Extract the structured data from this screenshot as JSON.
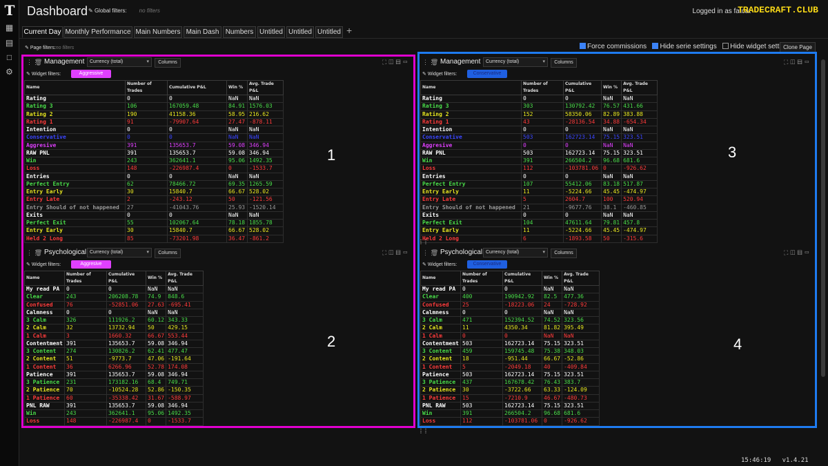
{
  "app": {
    "title": "Dashboard",
    "global_filters_label": "Global filters:",
    "global_filters_value": "no filters",
    "login_text": "Logged in as fatcat",
    "brand": "TRADECRAFT.CLUB",
    "logo_glyph": "T"
  },
  "tabs": [
    "Current Day",
    "Monthly Performance",
    "Main Numbers",
    "Main Dash",
    "Numbers",
    "Untitled",
    "Untitled",
    "Untitled"
  ],
  "add_tab": "+",
  "page_filters": {
    "label": "Page filters:",
    "value": "no filters"
  },
  "controls": {
    "force_commissions": "Force commissions",
    "hide_serie_settings": "Hide serie settings",
    "hide_widget_settings": "Hide widget settings",
    "clone_page": "Clone Page"
  },
  "columns": [
    "Name",
    "Number of Trades",
    "Cumulative P&L",
    "Win %",
    "Avg. Trade P&L"
  ],
  "colors": {
    "white": "#ffffff",
    "green": "#4ade4a",
    "yellow": "#e8e820",
    "red": "#ff3b3b",
    "blue": "#3b46ff",
    "magenta": "#e040ff",
    "gray": "#9a9a9a",
    "outline_left": "#e000d0",
    "outline_right": "#1e7bf0"
  },
  "panels": [
    {
      "id": "1",
      "title": "Management",
      "currency": "Currency (total)",
      "columns_btn": "Columns",
      "widget_filters": "Widget filters:",
      "filter": "Aggressive",
      "rows": [
        [
          "Rating",
          "0",
          "0",
          "NaN",
          "NaN",
          "white"
        ],
        [
          "Rating 3",
          "106",
          "167059.48",
          "84.91",
          "1576.03",
          "green"
        ],
        [
          "Rating 2",
          "190",
          "41158.36",
          "58.95",
          "216.62",
          "yellow"
        ],
        [
          "Rating 1",
          "91",
          "-79907.64",
          "27.47",
          "-878.11",
          "red"
        ],
        [
          "Intention",
          "0",
          "0",
          "NaN",
          "NaN",
          "white"
        ],
        [
          "Conservative",
          "0",
          "0",
          "NaN",
          "NaN",
          "blue"
        ],
        [
          "Aggresive",
          "391",
          "135653.7",
          "59.08",
          "346.94",
          "magenta"
        ],
        [
          "RAW PNL",
          "391",
          "135653.7",
          "59.08",
          "346.94",
          "white"
        ],
        [
          "Win",
          "243",
          "362641.1",
          "95.06",
          "1492.35",
          "green"
        ],
        [
          "Loss",
          "148",
          "-226987.4",
          "0",
          "-1533.7",
          "red"
        ],
        [
          "Entries",
          "0",
          "0",
          "NaN",
          "NaN",
          "white"
        ],
        [
          "Perfect Entry",
          "62",
          "78466.72",
          "69.35",
          "1265.59",
          "green"
        ],
        [
          "Entry Early",
          "30",
          "15840.7",
          "66.67",
          "528.02",
          "yellow"
        ],
        [
          "Entry Late",
          "2",
          "-243.12",
          "50",
          "-121.56",
          "red"
        ],
        [
          "Entry Should of not happened",
          "27",
          "-41043.76",
          "25.93",
          "-1520.14",
          "gray"
        ],
        [
          "Exits",
          "0",
          "0",
          "NaN",
          "NaN",
          "white"
        ],
        [
          "Perfect Exit",
          "55",
          "102067.64",
          "78.18",
          "1855.78",
          "green"
        ],
        [
          "Entry Early",
          "30",
          "15840.7",
          "66.67",
          "528.02",
          "yellow"
        ],
        [
          "Held 2 Long",
          "85",
          "-73201.98",
          "36.47",
          "-861.2",
          "red"
        ]
      ]
    },
    {
      "id": "2",
      "title": "Psychological",
      "currency": "Currency (total)",
      "columns_btn": "Columns",
      "widget_filters": "Widget filters:",
      "filter": "Aggresive",
      "rows": [
        [
          "My read PA",
          "0",
          "0",
          "NaN",
          "NaN",
          "white"
        ],
        [
          "Clear",
          "243",
          "206208.78",
          "74.9",
          "848.6",
          "green"
        ],
        [
          "Confused",
          "76",
          "-52851.06",
          "27.63",
          "-695.41",
          "red"
        ],
        [
          "Calmness",
          "0",
          "0",
          "NaN",
          "NaN",
          "white"
        ],
        [
          "3 Calm",
          "326",
          "111926.2",
          "60.12",
          "343.33",
          "green"
        ],
        [
          "2 Calm",
          "32",
          "13732.94",
          "50",
          "429.15",
          "yellow"
        ],
        [
          "1 Calm",
          "3",
          "1660.32",
          "66.67",
          "553.44",
          "red"
        ],
        [
          "Contentment",
          "391",
          "135653.7",
          "59.08",
          "346.94",
          "white"
        ],
        [
          "3 Content",
          "274",
          "130826.2",
          "62.41",
          "477.47",
          "green"
        ],
        [
          "2 Content",
          "51",
          "-9773.7",
          "47.06",
          "-191.64",
          "yellow"
        ],
        [
          "1 Content",
          "36",
          "6266.96",
          "52.78",
          "174.08",
          "red"
        ],
        [
          "Patience",
          "391",
          "135653.7",
          "59.08",
          "346.94",
          "white"
        ],
        [
          "3 Patience",
          "231",
          "173182.16",
          "68.4",
          "749.71",
          "green"
        ],
        [
          "2 Patience",
          "70",
          "-10524.28",
          "52.86",
          "-150.35",
          "yellow"
        ],
        [
          "1 Patience",
          "60",
          "-35338.42",
          "31.67",
          "-588.97",
          "red"
        ],
        [
          "PNL RAW",
          "391",
          "135653.7",
          "59.08",
          "346.94",
          "white"
        ],
        [
          "Win",
          "243",
          "362641.1",
          "95.06",
          "1492.35",
          "green"
        ],
        [
          "Loss",
          "148",
          "-226987.4",
          "0",
          "-1533.7",
          "red"
        ]
      ]
    },
    {
      "id": "3",
      "title": "Management",
      "currency": "Currency (total)",
      "columns_btn": "Columns",
      "widget_filters": "Widget filters:",
      "filter": "Conservative",
      "rows": [
        [
          "Rating",
          "0",
          "0",
          "NaN",
          "NaN",
          "white"
        ],
        [
          "Rating 3",
          "303",
          "130792.42",
          "76.57",
          "431.66",
          "green"
        ],
        [
          "Rating 2",
          "152",
          "58350.06",
          "82.89",
          "383.88",
          "yellow"
        ],
        [
          "Rating 1",
          "43",
          "-28136.54",
          "34.88",
          "-654.34",
          "red"
        ],
        [
          "Intention",
          "0",
          "0",
          "NaN",
          "NaN",
          "white"
        ],
        [
          "Conservative",
          "503",
          "162723.14",
          "75.15",
          "323.51",
          "blue"
        ],
        [
          "Aggresive",
          "0",
          "0",
          "NaN",
          "NaN",
          "magenta"
        ],
        [
          "RAW PNL",
          "503",
          "162723.14",
          "75.15",
          "323.51",
          "white"
        ],
        [
          "Win",
          "391",
          "266504.2",
          "96.68",
          "681.6",
          "green"
        ],
        [
          "Loss",
          "112",
          "-103781.06",
          "0",
          "-926.62",
          "red"
        ],
        [
          "Entries",
          "0",
          "0",
          "NaN",
          "NaN",
          "white"
        ],
        [
          "Perfect Entry",
          "107",
          "55412.06",
          "83.18",
          "517.87",
          "green"
        ],
        [
          "Entry Early",
          "11",
          "-5224.66",
          "45.45",
          "-474.97",
          "yellow"
        ],
        [
          "Entry Late",
          "5",
          "2604.7",
          "100",
          "520.94",
          "red"
        ],
        [
          "Entry Should of not happened",
          "21",
          "-9677.76",
          "38.1",
          "-460.85",
          "gray"
        ],
        [
          "Exits",
          "0",
          "0",
          "NaN",
          "NaN",
          "white"
        ],
        [
          "Perfect Exit",
          "104",
          "47611.64",
          "79.81",
          "457.8",
          "green"
        ],
        [
          "Entry Early",
          "11",
          "-5224.66",
          "45.45",
          "-474.97",
          "yellow"
        ],
        [
          "Held 2 Long",
          "6",
          "-1893.58",
          "50",
          "-315.6",
          "red"
        ]
      ]
    },
    {
      "id": "4",
      "title": "Psychological",
      "currency": "Currency (total)",
      "columns_btn": "Columns",
      "widget_filters": "Widget filters:",
      "filter": "Conservative",
      "rows": [
        [
          "My read PA",
          "0",
          "0",
          "NaN",
          "NaN",
          "white"
        ],
        [
          "Clear",
          "400",
          "190942.92",
          "82.5",
          "477.36",
          "green"
        ],
        [
          "Confused",
          "25",
          "-18223.06",
          "24",
          "-728.92",
          "red"
        ],
        [
          "Calmness",
          "0",
          "0",
          "NaN",
          "NaN",
          "white"
        ],
        [
          "3 Calm",
          "471",
          "152394.52",
          "74.52",
          "323.56",
          "green"
        ],
        [
          "2 Calm",
          "11",
          "4350.34",
          "81.82",
          "395.49",
          "yellow"
        ],
        [
          "1 Calm",
          "0",
          "0",
          "NaN",
          "NaN",
          "red"
        ],
        [
          "Contentment",
          "503",
          "162723.14",
          "75.15",
          "323.51",
          "white"
        ],
        [
          "3 Content",
          "459",
          "159745.48",
          "75.38",
          "348.03",
          "green"
        ],
        [
          "2 Content",
          "18",
          "-951.44",
          "66.67",
          "-52.86",
          "yellow"
        ],
        [
          "1 Content",
          "5",
          "-2049.18",
          "40",
          "-409.84",
          "red"
        ],
        [
          "Patience",
          "503",
          "162723.14",
          "75.15",
          "323.51",
          "white"
        ],
        [
          "3 Patience",
          "437",
          "167678.42",
          "76.43",
          "383.7",
          "green"
        ],
        [
          "2 Patience",
          "30",
          "-3722.66",
          "63.33",
          "-124.09",
          "yellow"
        ],
        [
          "1 Patience",
          "15",
          "-7210.9",
          "46.67",
          "-480.73",
          "red"
        ],
        [
          "PNL RAW",
          "503",
          "162723.14",
          "75.15",
          "323.51",
          "white"
        ],
        [
          "Win",
          "391",
          "266504.2",
          "96.68",
          "681.6",
          "green"
        ],
        [
          "Loss",
          "112",
          "-103781.06",
          "0",
          "-926.62",
          "red"
        ]
      ]
    }
  ],
  "footer": {
    "time": "15:46:19",
    "version": "v1.4.21"
  }
}
